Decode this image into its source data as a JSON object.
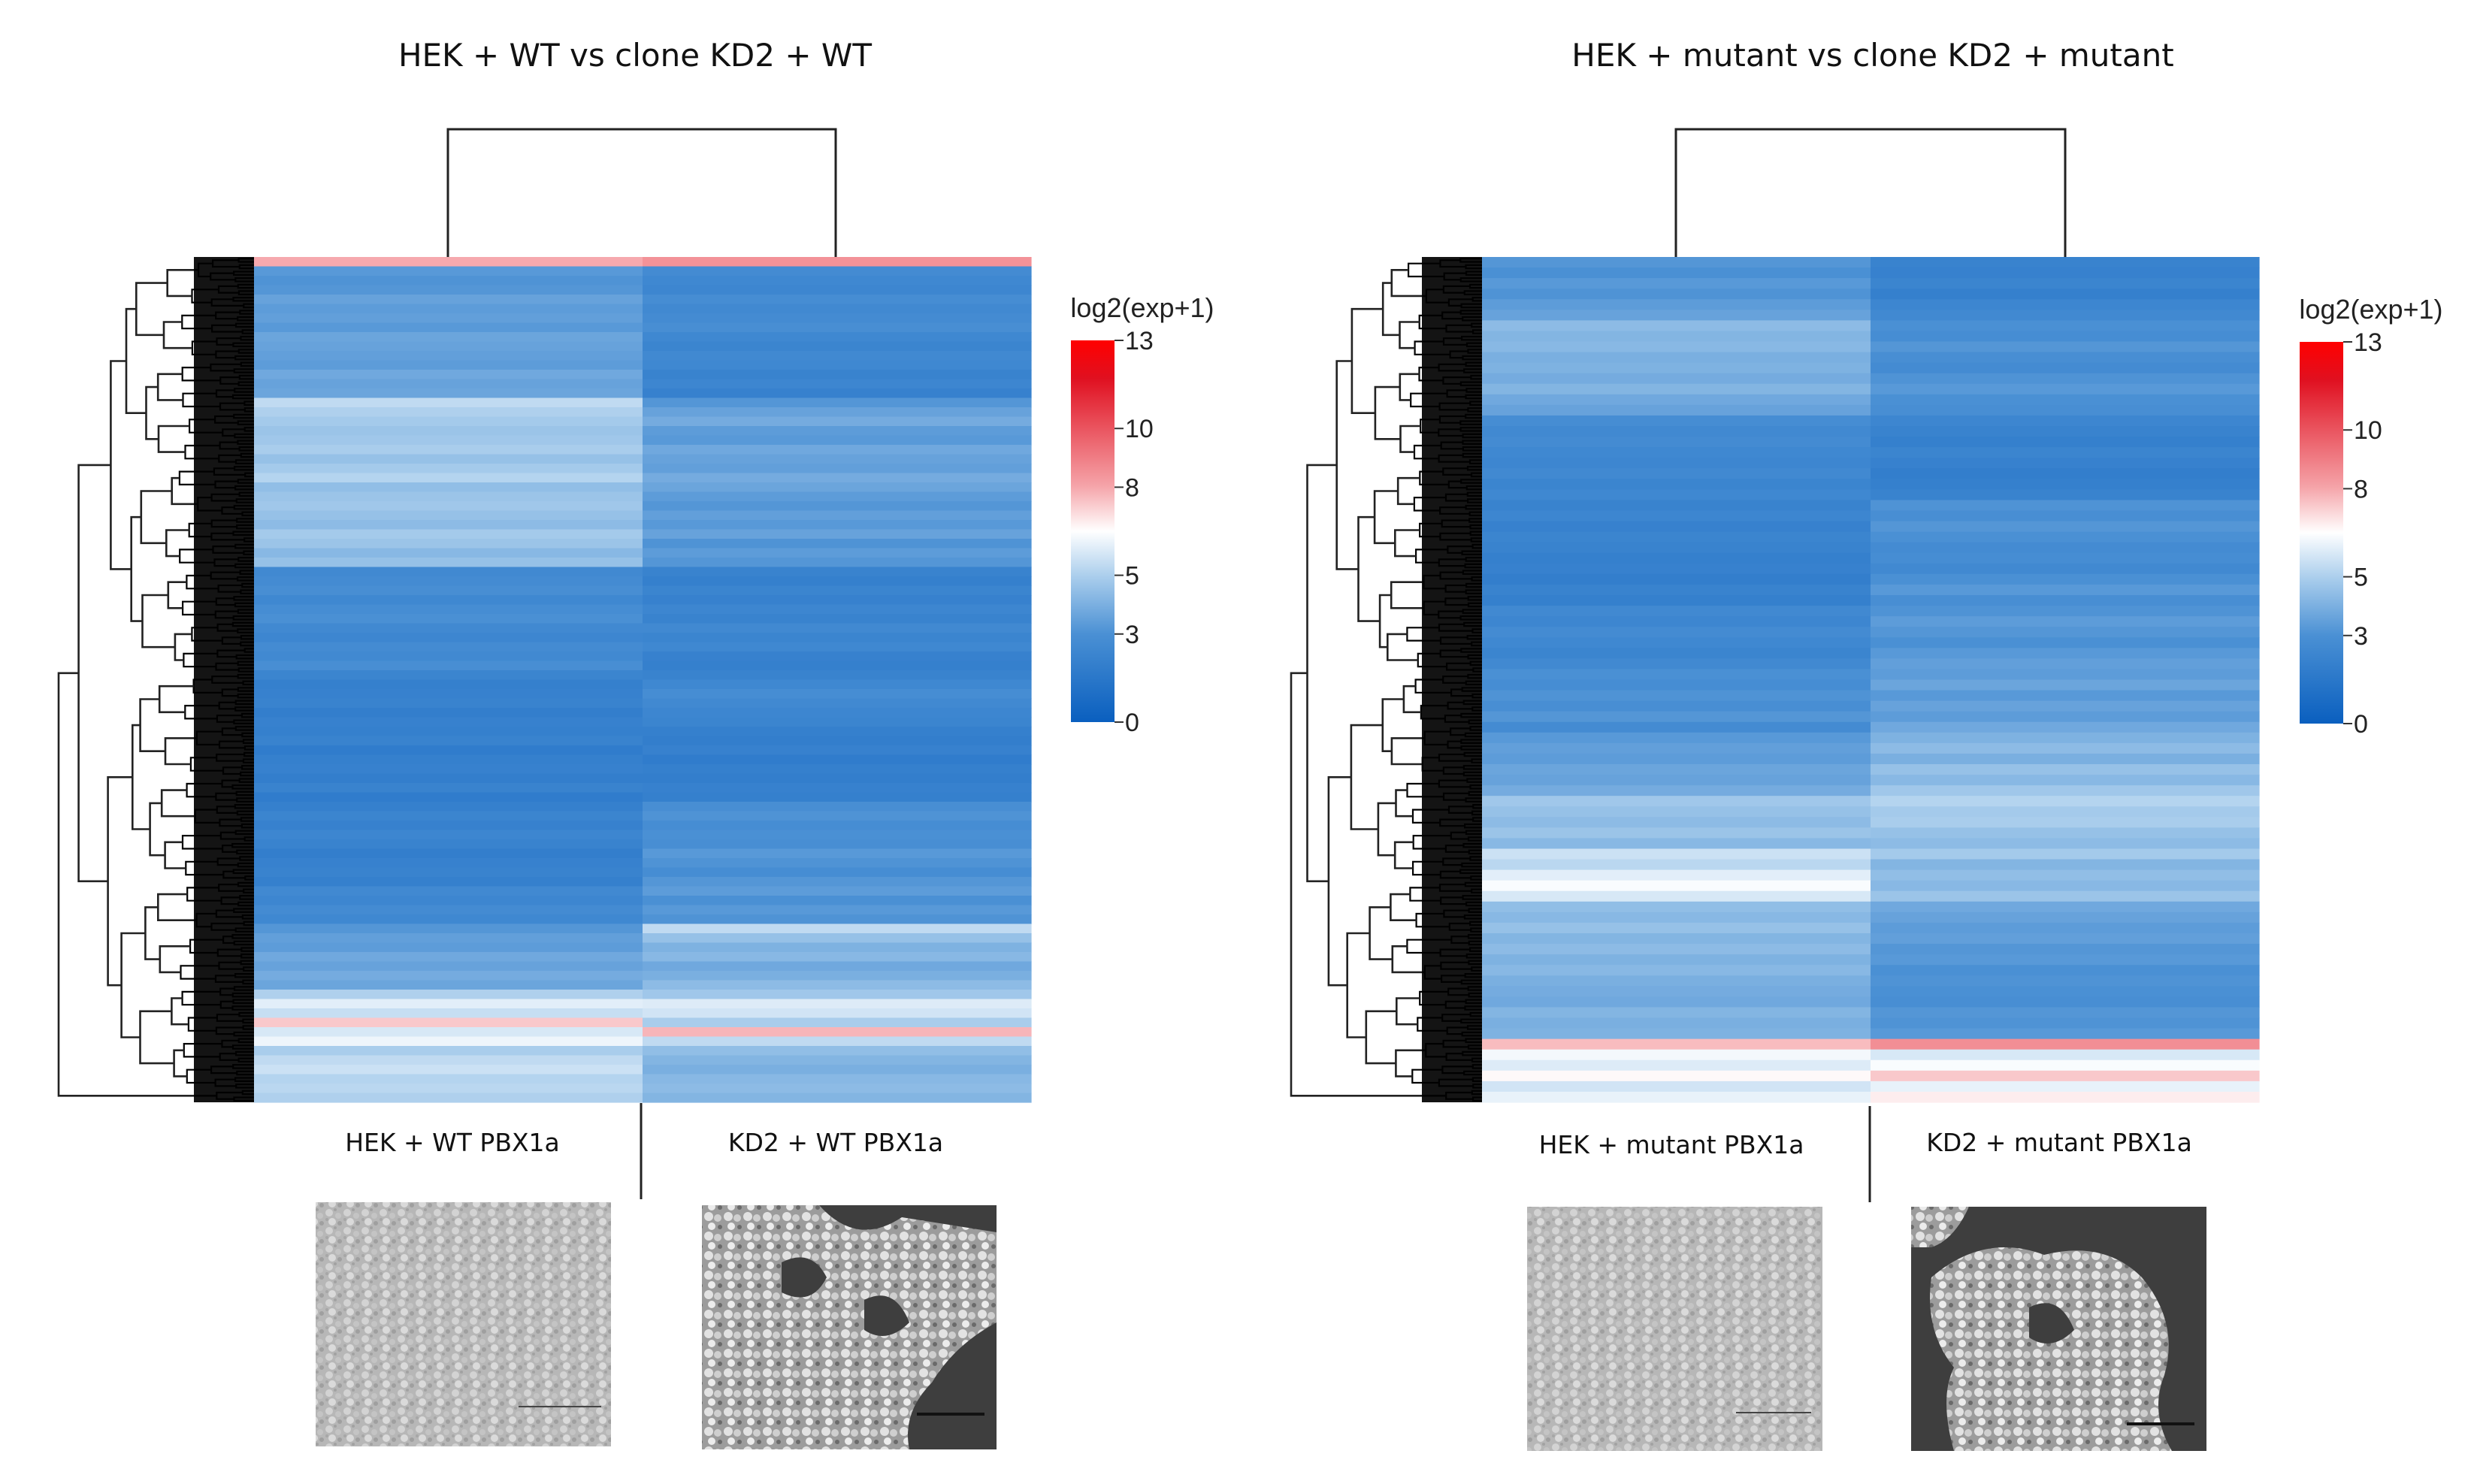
{
  "chart_data": [
    {
      "type": "heatmap",
      "title": "HEK + WT vs clone KD2 + WT",
      "columns": [
        "HEK + WT PBX1a",
        "KD2 + WT PBX1a"
      ],
      "scale": {
        "title": "log2(exp+1)",
        "min": 0,
        "max": 13,
        "ticks": [
          0,
          3,
          5,
          8,
          10,
          13
        ],
        "colors": [
          "#0a5fbf",
          "#4a90d4",
          "#a9cdec",
          "#ffffff",
          "#f5a3a8",
          "#e01020",
          "#ff0000"
        ]
      },
      "rows": [
        [
          7.9,
          8.4
        ],
        [
          3.3,
          2.7
        ],
        [
          3.1,
          2.5
        ],
        [
          3.2,
          2.4
        ],
        [
          3.6,
          2.8
        ],
        [
          3.4,
          2.6
        ],
        [
          3.5,
          2.7
        ],
        [
          3.3,
          2.9
        ],
        [
          3.7,
          2.5
        ],
        [
          3.6,
          2.3
        ],
        [
          3.5,
          2.6
        ],
        [
          3.4,
          2.5
        ],
        [
          3.8,
          2.2
        ],
        [
          3.6,
          2.4
        ],
        [
          3.7,
          2.1
        ],
        [
          5.4,
          3.2
        ],
        [
          5.1,
          3.6
        ],
        [
          4.9,
          3.9
        ],
        [
          4.7,
          3.4
        ],
        [
          4.8,
          3.3
        ],
        [
          5.0,
          3.8
        ],
        [
          4.6,
          3.6
        ],
        [
          4.9,
          3.5
        ],
        [
          5.2,
          3.9
        ],
        [
          4.5,
          3.7
        ],
        [
          4.7,
          3.4
        ],
        [
          4.8,
          3.2
        ],
        [
          4.6,
          3.5
        ],
        [
          4.4,
          3.3
        ],
        [
          4.9,
          3.6
        ],
        [
          4.7,
          3.1
        ],
        [
          4.3,
          3.4
        ],
        [
          4.6,
          3.2
        ],
        [
          2.6,
          2.2
        ],
        [
          2.7,
          2.0
        ],
        [
          2.9,
          2.3
        ],
        [
          2.5,
          2.1
        ],
        [
          2.8,
          2.4
        ],
        [
          3.0,
          2.2
        ],
        [
          2.6,
          2.6
        ],
        [
          2.4,
          2.3
        ],
        [
          2.7,
          2.5
        ],
        [
          2.6,
          2.1
        ],
        [
          2.9,
          2.0
        ],
        [
          2.3,
          2.2
        ],
        [
          2.0,
          2.5
        ],
        [
          2.1,
          2.8
        ],
        [
          2.2,
          2.6
        ],
        [
          1.9,
          2.4
        ],
        [
          2.1,
          2.3
        ],
        [
          2.0,
          2.0
        ],
        [
          2.2,
          1.9
        ],
        [
          1.8,
          2.1
        ],
        [
          2.0,
          1.8
        ],
        [
          2.1,
          2.0
        ],
        [
          1.9,
          1.9
        ],
        [
          2.2,
          2.1
        ],
        [
          1.8,
          2.0
        ],
        [
          2.0,
          2.9
        ],
        [
          2.3,
          3.1
        ],
        [
          2.1,
          2.8
        ],
        [
          2.4,
          3.0
        ],
        [
          2.2,
          2.9
        ],
        [
          1.9,
          3.3
        ],
        [
          2.1,
          3.1
        ],
        [
          2.2,
          2.8
        ],
        [
          2.0,
          3.2
        ],
        [
          2.6,
          3.4
        ],
        [
          2.4,
          3.0
        ],
        [
          2.7,
          3.3
        ],
        [
          2.5,
          3.1
        ],
        [
          3.2,
          5.4
        ],
        [
          3.5,
          4.6
        ],
        [
          3.4,
          4.1
        ],
        [
          3.8,
          4.3
        ],
        [
          3.6,
          3.8
        ],
        [
          3.9,
          4.0
        ],
        [
          3.7,
          4.4
        ],
        [
          5.1,
          4.8
        ],
        [
          6.0,
          5.9
        ],
        [
          5.5,
          5.7
        ],
        [
          7.4,
          5.0
        ],
        [
          5.8,
          7.7
        ],
        [
          6.2,
          5.4
        ],
        [
          5.0,
          4.5
        ],
        [
          5.4,
          4.2
        ],
        [
          5.6,
          4.0
        ],
        [
          5.2,
          4.3
        ],
        [
          5.3,
          4.4
        ],
        [
          5.1,
          4.2
        ]
      ]
    },
    {
      "type": "heatmap",
      "title": "HEK + mutant vs clone KD2 + mutant",
      "columns": [
        "HEK + mutant PBX1a",
        "KD2 + mutant PBX1a"
      ],
      "scale": {
        "title": "log2(exp+1)",
        "min": 0,
        "max": 13,
        "ticks": [
          0,
          3,
          5,
          8,
          10,
          13
        ],
        "colors": [
          "#0a5fbf",
          "#4a90d4",
          "#a9cdec",
          "#ffffff",
          "#f5a3a8",
          "#e01020",
          "#ff0000"
        ]
      },
      "rows": [
        [
          3.2,
          2.2
        ],
        [
          3.0,
          2.1
        ],
        [
          3.3,
          2.3
        ],
        [
          3.1,
          2.0
        ],
        [
          3.4,
          2.4
        ],
        [
          3.6,
          2.6
        ],
        [
          4.4,
          3.0
        ],
        [
          4.2,
          2.8
        ],
        [
          4.3,
          3.2
        ],
        [
          4.0,
          2.9
        ],
        [
          4.1,
          2.7
        ],
        [
          3.9,
          3.1
        ],
        [
          4.2,
          3.3
        ],
        [
          3.8,
          3.0
        ],
        [
          3.6,
          2.9
        ],
        [
          2.8,
          2.4
        ],
        [
          2.6,
          2.2
        ],
        [
          2.7,
          2.0
        ],
        [
          2.5,
          2.3
        ],
        [
          2.4,
          2.1
        ],
        [
          2.6,
          1.9
        ],
        [
          2.3,
          2.0
        ],
        [
          2.5,
          2.2
        ],
        [
          2.2,
          3.1
        ],
        [
          2.4,
          2.9
        ],
        [
          2.1,
          3.2
        ],
        [
          2.3,
          3.0
        ],
        [
          2.2,
          2.7
        ],
        [
          2.0,
          2.8
        ],
        [
          2.1,
          2.6
        ],
        [
          1.9,
          3.0
        ],
        [
          2.2,
          3.3
        ],
        [
          2.0,
          2.9
        ],
        [
          2.6,
          3.1
        ],
        [
          2.4,
          3.4
        ],
        [
          2.7,
          3.2
        ],
        [
          2.5,
          3.0
        ],
        [
          2.3,
          3.3
        ],
        [
          2.6,
          3.5
        ],
        [
          3.0,
          3.4
        ],
        [
          2.8,
          3.7
        ],
        [
          3.1,
          3.3
        ],
        [
          2.9,
          3.6
        ],
        [
          3.2,
          3.4
        ],
        [
          2.7,
          3.8
        ],
        [
          3.3,
          4.1
        ],
        [
          3.5,
          4.4
        ],
        [
          3.4,
          4.0
        ],
        [
          3.7,
          4.6
        ],
        [
          3.6,
          4.3
        ],
        [
          3.9,
          4.8
        ],
        [
          4.8,
          5.2
        ],
        [
          4.6,
          4.9
        ],
        [
          4.4,
          5.0
        ],
        [
          4.7,
          4.6
        ],
        [
          4.3,
          4.4
        ],
        [
          5.6,
          4.9
        ],
        [
          5.3,
          4.2
        ],
        [
          6.0,
          4.5
        ],
        [
          6.4,
          4.3
        ],
        [
          5.8,
          4.7
        ],
        [
          4.5,
          3.8
        ],
        [
          4.3,
          3.6
        ],
        [
          4.6,
          3.4
        ],
        [
          4.2,
          3.5
        ],
        [
          4.4,
          3.2
        ],
        [
          4.1,
          3.3
        ],
        [
          4.3,
          3.0
        ],
        [
          4.0,
          3.1
        ],
        [
          3.9,
          3.0
        ],
        [
          3.8,
          2.9
        ],
        [
          4.2,
          3.2
        ],
        [
          4.0,
          3.1
        ],
        [
          4.1,
          3.3
        ],
        [
          7.6,
          8.5
        ],
        [
          6.3,
          5.8
        ],
        [
          5.9,
          6.4
        ],
        [
          6.6,
          7.4
        ],
        [
          5.7,
          6.1
        ],
        [
          6.1,
          6.8
        ]
      ]
    }
  ]
}
